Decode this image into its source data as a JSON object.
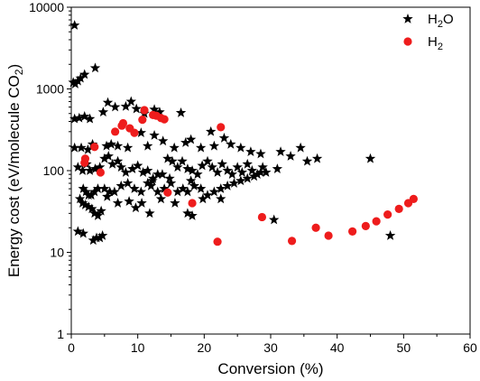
{
  "chart_data": {
    "type": "scatter",
    "xlabel": "Conversion (%)",
    "ylabel_parts": [
      "Energy cost (eV/molecule CO",
      "2",
      ")"
    ],
    "xlim": [
      0,
      60
    ],
    "ylim": [
      1,
      10000
    ],
    "yscale": "log",
    "x_ticks": [
      "0",
      "10",
      "20",
      "30",
      "40",
      "50",
      "60"
    ],
    "y_ticks": [
      "1",
      "10",
      "100",
      "1000",
      "10000"
    ],
    "grid": false,
    "legend_position": "top-right",
    "series": [
      {
        "legend_parts": [
          "H",
          "2",
          "O"
        ],
        "marker": "star",
        "color": "#000000",
        "points": [
          [
            0.5,
            6000
          ],
          [
            0.3,
            1200
          ],
          [
            0.6,
            1150
          ],
          [
            1.0,
            1250
          ],
          [
            1.4,
            1350
          ],
          [
            2.0,
            1500
          ],
          [
            3.6,
            1800
          ],
          [
            0.5,
            430
          ],
          [
            1.2,
            440
          ],
          [
            2.0,
            460
          ],
          [
            2.8,
            430
          ],
          [
            4.8,
            520
          ],
          [
            5.5,
            680
          ],
          [
            6.6,
            600
          ],
          [
            8.2,
            610
          ],
          [
            9.0,
            700
          ],
          [
            9.8,
            570
          ],
          [
            11.0,
            500
          ],
          [
            12.5,
            560
          ],
          [
            13.3,
            520
          ],
          [
            16.5,
            510
          ],
          [
            0.5,
            190
          ],
          [
            1.5,
            190
          ],
          [
            2.5,
            180
          ],
          [
            3.2,
            210
          ],
          [
            5.3,
            200
          ],
          [
            6.0,
            210
          ],
          [
            7.0,
            200
          ],
          [
            8.5,
            190
          ],
          [
            10.5,
            290
          ],
          [
            11.5,
            200
          ],
          [
            12.5,
            270
          ],
          [
            13.8,
            230
          ],
          [
            15.5,
            190
          ],
          [
            17.2,
            220
          ],
          [
            18.0,
            240
          ],
          [
            19.5,
            190
          ],
          [
            21.0,
            300
          ],
          [
            21.5,
            200
          ],
          [
            23.0,
            250
          ],
          [
            24.0,
            210
          ],
          [
            25.5,
            190
          ],
          [
            27.0,
            170
          ],
          [
            28.5,
            160
          ],
          [
            31.5,
            170
          ],
          [
            33.0,
            150
          ],
          [
            34.5,
            190
          ],
          [
            35.5,
            130
          ],
          [
            37.0,
            140
          ],
          [
            45.0,
            140
          ],
          [
            1.0,
            110
          ],
          [
            1.7,
            100
          ],
          [
            2.3,
            120
          ],
          [
            2.8,
            100
          ],
          [
            3.6,
            105
          ],
          [
            4.3,
            110
          ],
          [
            5.0,
            140
          ],
          [
            5.6,
            150
          ],
          [
            6.2,
            120
          ],
          [
            7.0,
            130
          ],
          [
            7.5,
            110
          ],
          [
            8.2,
            95
          ],
          [
            9.2,
            105
          ],
          [
            10.0,
            115
          ],
          [
            10.8,
            95
          ],
          [
            11.5,
            100
          ],
          [
            12.3,
            80
          ],
          [
            13.0,
            90
          ],
          [
            13.7,
            90
          ],
          [
            14.5,
            140
          ],
          [
            15.2,
            130
          ],
          [
            16.0,
            110
          ],
          [
            16.7,
            130
          ],
          [
            17.5,
            105
          ],
          [
            18.2,
            100
          ],
          [
            19.0,
            90
          ],
          [
            19.7,
            115
          ],
          [
            20.5,
            130
          ],
          [
            21.2,
            110
          ],
          [
            22.0,
            95
          ],
          [
            22.7,
            120
          ],
          [
            23.5,
            100
          ],
          [
            24.2,
            90
          ],
          [
            25.0,
            110
          ],
          [
            25.7,
            95
          ],
          [
            26.5,
            120
          ],
          [
            27.2,
            100
          ],
          [
            28.0,
            90
          ],
          [
            28.8,
            110
          ],
          [
            29.3,
            95
          ],
          [
            31.0,
            105
          ],
          [
            1.8,
            60
          ],
          [
            2.2,
            55
          ],
          [
            2.6,
            50
          ],
          [
            3.0,
            50
          ],
          [
            3.5,
            55
          ],
          [
            4.0,
            60
          ],
          [
            5.0,
            60
          ],
          [
            5.8,
            55
          ],
          [
            6.5,
            55
          ],
          [
            7.5,
            65
          ],
          [
            8.5,
            70
          ],
          [
            9.5,
            60
          ],
          [
            10.5,
            55
          ],
          [
            11.5,
            70
          ],
          [
            12.0,
            65
          ],
          [
            13.0,
            55
          ],
          [
            14.0,
            60
          ],
          [
            15.0,
            70
          ],
          [
            16.0,
            55
          ],
          [
            16.8,
            60
          ],
          [
            17.5,
            55
          ],
          [
            18.5,
            65
          ],
          [
            19.5,
            60
          ],
          [
            20.5,
            50
          ],
          [
            21.5,
            55
          ],
          [
            22.5,
            60
          ],
          [
            23.5,
            65
          ],
          [
            24.5,
            70
          ],
          [
            25.5,
            75
          ],
          [
            26.5,
            80
          ],
          [
            27.5,
            85
          ],
          [
            28.5,
            95
          ],
          [
            12.2,
            75
          ],
          [
            14.8,
            80
          ],
          [
            18.0,
            75
          ],
          [
            1.3,
            45
          ],
          [
            1.7,
            40
          ],
          [
            2.1,
            38
          ],
          [
            2.6,
            36
          ],
          [
            3.1,
            34
          ],
          [
            3.5,
            30
          ],
          [
            4.0,
            28
          ],
          [
            4.5,
            32
          ],
          [
            5.4,
            48
          ],
          [
            7.0,
            40
          ],
          [
            8.7,
            42
          ],
          [
            9.7,
            35
          ],
          [
            10.6,
            40
          ],
          [
            11.8,
            30
          ],
          [
            13.5,
            45
          ],
          [
            15.6,
            40
          ],
          [
            17.5,
            30
          ],
          [
            18.2,
            28
          ],
          [
            19.8,
            45
          ],
          [
            22.5,
            45
          ],
          [
            30.5,
            25
          ],
          [
            1.0,
            18
          ],
          [
            1.8,
            17
          ],
          [
            3.3,
            14
          ],
          [
            3.8,
            15
          ],
          [
            4.3,
            15
          ],
          [
            4.7,
            16
          ],
          [
            48.0,
            16
          ]
        ]
      },
      {
        "legend_parts": [
          "H",
          "2"
        ],
        "marker": "circle",
        "color": "#ee1c1c",
        "points": [
          [
            2.0,
            125
          ],
          [
            2.1,
            140
          ],
          [
            3.5,
            195
          ],
          [
            4.4,
            95
          ],
          [
            6.6,
            300
          ],
          [
            7.6,
            355
          ],
          [
            7.8,
            380
          ],
          [
            8.8,
            330
          ],
          [
            9.5,
            290
          ],
          [
            10.7,
            420
          ],
          [
            11.0,
            550
          ],
          [
            12.3,
            480
          ],
          [
            12.8,
            470
          ],
          [
            13.5,
            440
          ],
          [
            14.0,
            425
          ],
          [
            14.5,
            54
          ],
          [
            18.2,
            40
          ],
          [
            22.0,
            13.5
          ],
          [
            22.5,
            340
          ],
          [
            28.7,
            27
          ],
          [
            33.2,
            13.8
          ],
          [
            36.8,
            20
          ],
          [
            38.7,
            16
          ],
          [
            42.3,
            18
          ],
          [
            44.3,
            21
          ],
          [
            45.9,
            24
          ],
          [
            47.6,
            29
          ],
          [
            49.3,
            34
          ],
          [
            50.7,
            40
          ],
          [
            51.5,
            45
          ]
        ]
      }
    ]
  }
}
